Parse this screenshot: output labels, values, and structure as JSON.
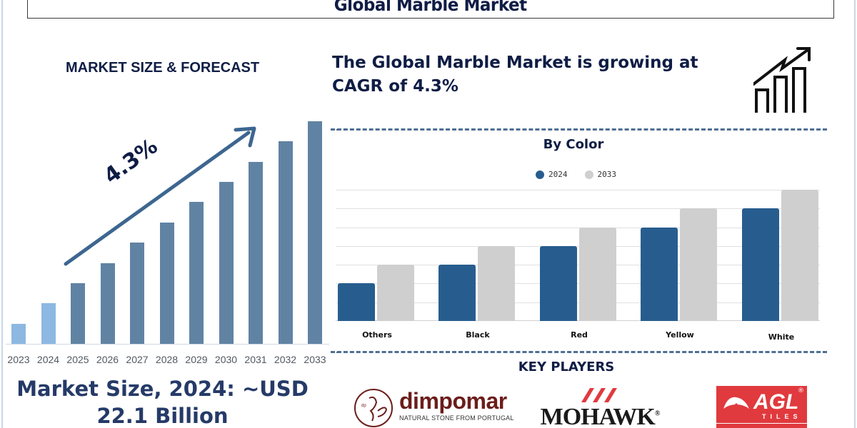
{
  "header": {
    "title": "Global Marble Market"
  },
  "left_panel": {
    "heading": "MARKET SIZE & FORECAST",
    "cagr_badge": "4.3%",
    "market_size_line1": "Market Size, 2024: ~USD",
    "market_size_line2": "22.1 Billion"
  },
  "right_panel": {
    "cagr_statement": "The Global Marble Market is growing at CAGR of 4.3%",
    "growth_icon": "bar-chart-trend-up-icon",
    "by_color_title": "By Color",
    "key_players_title": "KEY PLAYERS",
    "key_players": [
      {
        "name": "dimpomar",
        "tagline": "NATURAL STONE FROM PORTUGAL",
        "color": "#6b1d1a"
      },
      {
        "name": "MOHAWK",
        "mark": "®",
        "color": "#e03a3e"
      },
      {
        "name": "AGL",
        "sub": "TILES",
        "mark": "®",
        "color": "#e03a3e"
      }
    ]
  },
  "colors": {
    "title_navy": "#0f1d45",
    "forecast_bar_actual": "#8db8e2",
    "forecast_bar_projected": "#6183a3",
    "series_2024": "#275d8e",
    "series_2033": "#cfcfcf",
    "dash_rule": "#4e6f93"
  },
  "chart_data": [
    {
      "type": "bar",
      "title": "MARKET SIZE & FORECAST",
      "categories": [
        "2023",
        "2024",
        "2025",
        "2026",
        "2027",
        "2028",
        "2029",
        "2030",
        "2031",
        "2032",
        "2033"
      ],
      "values": [
        1.0,
        2.0,
        3.0,
        4.0,
        5.0,
        6.0,
        7.0,
        8.0,
        9.0,
        10.0,
        11.0
      ],
      "value_note": "relative bar heights (unitless); 2024 market size ~USD 22.1 Billion",
      "annotation": "4.3% CAGR arrow",
      "xlabel": "",
      "ylabel": "",
      "grid": false
    },
    {
      "type": "bar",
      "title": "By Color",
      "categories": [
        "Others",
        "Black",
        "Red",
        "Yellow",
        "White"
      ],
      "series": [
        {
          "name": "2024",
          "values": [
            2,
            3,
            4,
            5,
            6
          ]
        },
        {
          "name": "2033",
          "values": [
            3,
            4,
            5,
            6,
            7
          ]
        }
      ],
      "value_note": "relative heights measured in gridline units (no axis labels shown)",
      "ylim": [
        0,
        7
      ],
      "grid": true,
      "legend_position": "top"
    }
  ]
}
